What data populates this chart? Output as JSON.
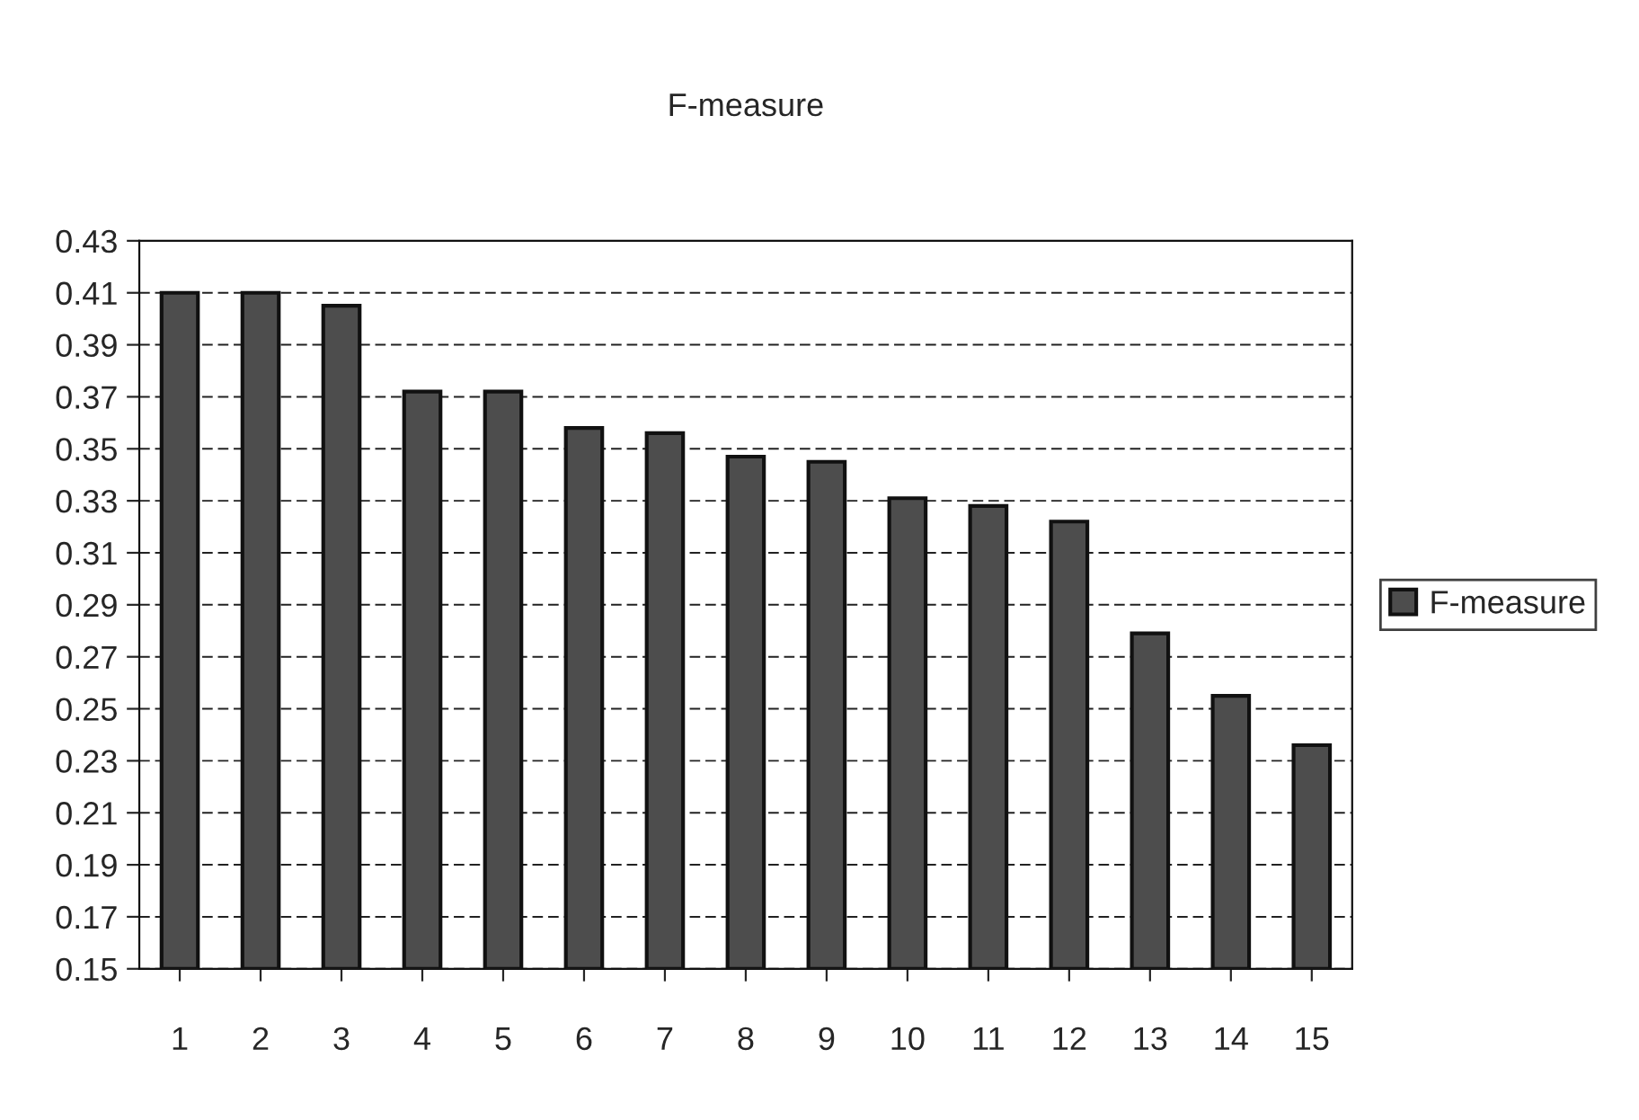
{
  "chart_data": {
    "type": "bar",
    "title": "F-measure",
    "categories": [
      "1",
      "2",
      "3",
      "4",
      "5",
      "6",
      "7",
      "8",
      "9",
      "10",
      "11",
      "12",
      "13",
      "14",
      "15"
    ],
    "series": [
      {
        "name": "F-measure",
        "color": "#4d4d4d",
        "values": [
          0.41,
          0.41,
          0.405,
          0.372,
          0.372,
          0.358,
          0.356,
          0.347,
          0.345,
          0.331,
          0.328,
          0.322,
          0.279,
          0.255,
          0.236
        ]
      }
    ],
    "ylim": [
      0.15,
      0.43
    ],
    "yticks": [
      0.15,
      0.17,
      0.19,
      0.21,
      0.23,
      0.25,
      0.27,
      0.29,
      0.31,
      0.33,
      0.35,
      0.37,
      0.39,
      0.41,
      0.43
    ],
    "grid": "y",
    "legend": "right"
  }
}
